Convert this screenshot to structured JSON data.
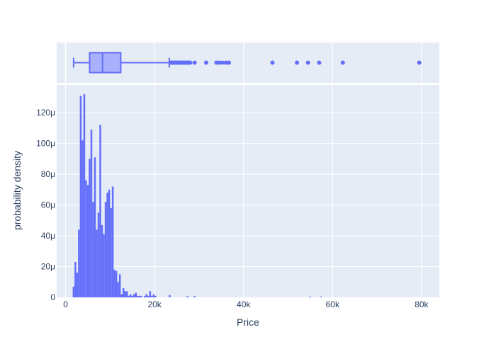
{
  "colors": {
    "plot_bg": "#E5ECF6",
    "grid": "#ffffff",
    "series": "#636EFA",
    "box_fill": "#A9B0FC",
    "text": "#2a3f5f"
  },
  "chart_data": [
    {
      "type": "box",
      "orientation": "horizontal",
      "panel": "marginal",
      "x_range": [
        -2000,
        84000
      ],
      "grid": true,
      "stats": {
        "lowerfence": 1800,
        "q1": 5400,
        "median": 8300,
        "q3": 12400,
        "upperfence": 23300
      },
      "outliers": [
        23600,
        23900,
        24200,
        24500,
        24800,
        25100,
        25400,
        25700,
        26000,
        26300,
        26600,
        26900,
        27200,
        27500,
        27800,
        28000,
        29000,
        31600,
        33900,
        34500,
        35200,
        36000,
        36700,
        46500,
        52000,
        54500,
        57000,
        62300,
        79500
      ]
    },
    {
      "type": "histogram",
      "histnorm": "probability density",
      "xlabel": "Price",
      "ylabel": "probability density",
      "xlim": [
        -2000,
        84000
      ],
      "ylim": [
        0,
        0.000138
      ],
      "grid": true,
      "x_ticks": [
        {
          "value": 0,
          "label": "0"
        },
        {
          "value": 20000,
          "label": "20k"
        },
        {
          "value": 40000,
          "label": "40k"
        },
        {
          "value": 60000,
          "label": "60k"
        },
        {
          "value": 80000,
          "label": "80k"
        }
      ],
      "y_ticks": [
        {
          "value": 0,
          "label": "0"
        },
        {
          "value": 2e-05,
          "label": "20μ"
        },
        {
          "value": 4e-05,
          "label": "40μ"
        },
        {
          "value": 6e-05,
          "label": "60μ"
        },
        {
          "value": 8e-05,
          "label": "80μ"
        },
        {
          "value": 0.0001,
          "label": "100μ"
        },
        {
          "value": 0.00012,
          "label": "120μ"
        }
      ],
      "bin_size": 400,
      "bin_start": 1600,
      "values": [
        7e-06,
        2.3e-05,
        1.6e-05,
        4.4e-05,
        0.000131,
        0.000102,
        0.000132,
        7.6e-05,
        7.3e-05,
        9e-05,
        0.000109,
        6.2e-05,
        9.1e-05,
        4.4e-05,
        5.5e-05,
        0.000112,
        4.7e-05,
        4.1e-05,
        6.2e-05,
        6.8e-05,
        7e-05,
        5.8e-05,
        7.2e-05,
        1.8e-05,
        1.7e-05,
        1e-05,
        1.5e-05,
        2e-06,
        6e-06,
        4e-06,
        4e-06,
        1e-06,
        2e-06,
        1e-06,
        2e-06,
        3e-06,
        1e-06,
        1e-06,
        1e-06,
        0,
        1e-06,
        2e-06,
        1e-06,
        4e-06,
        1e-06,
        2e-06,
        1e-06,
        0,
        0,
        0,
        0,
        0,
        0,
        0,
        1.5e-06,
        0,
        0,
        0,
        0,
        0,
        0,
        0,
        0,
        0,
        8e-07,
        0,
        0,
        0,
        8e-07,
        0,
        0,
        0,
        0,
        0,
        0,
        0,
        0,
        0,
        0,
        0,
        0,
        0,
        0,
        0,
        0,
        0,
        0,
        0,
        0,
        0,
        0,
        0,
        0,
        0,
        0,
        0,
        0,
        0,
        0,
        0,
        0,
        0,
        0,
        0,
        0,
        0,
        0,
        0,
        0,
        0,
        0,
        0,
        0,
        0,
        0,
        0,
        0,
        0,
        0,
        0,
        0,
        0,
        0,
        0,
        0,
        0,
        0,
        0,
        0,
        0,
        0,
        0,
        0,
        5e-07,
        0,
        0,
        0,
        0,
        0,
        5e-07
      ]
    }
  ]
}
